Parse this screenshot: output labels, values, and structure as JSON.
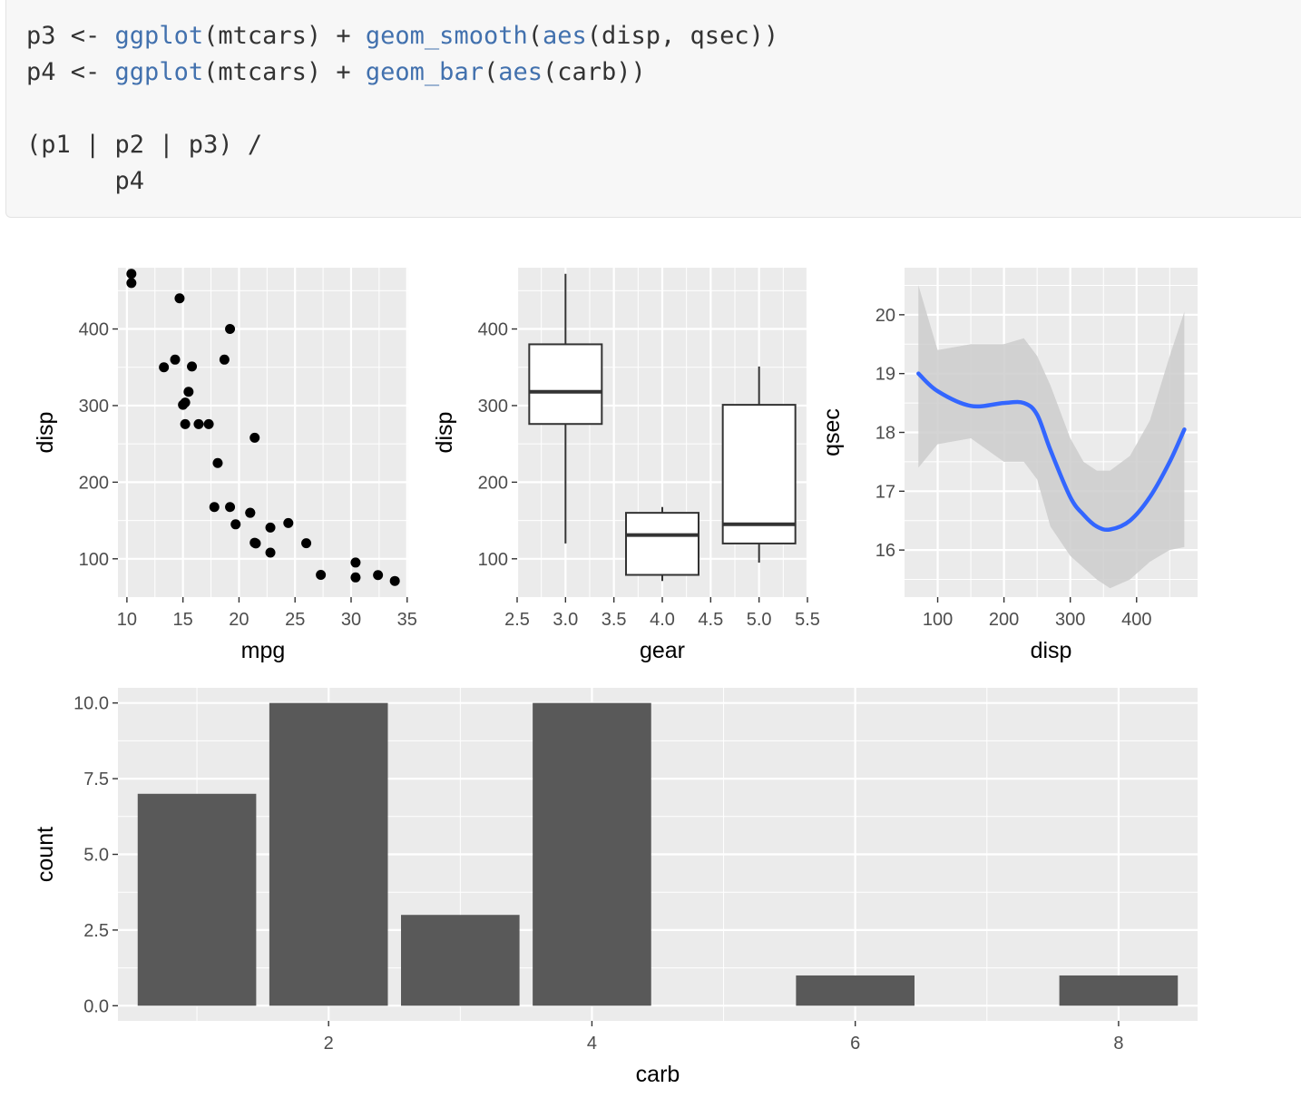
{
  "code": {
    "lines": [
      [
        {
          "t": "p3 <- ",
          "c": "plain"
        },
        {
          "t": "ggplot",
          "c": "fn"
        },
        {
          "t": "(mtcars) + ",
          "c": "plain"
        },
        {
          "t": "geom_smooth",
          "c": "fn"
        },
        {
          "t": "(",
          "c": "plain"
        },
        {
          "t": "aes",
          "c": "fn"
        },
        {
          "t": "(disp, qsec))",
          "c": "plain"
        }
      ],
      [
        {
          "t": "p4 <- ",
          "c": "plain"
        },
        {
          "t": "ggplot",
          "c": "fn"
        },
        {
          "t": "(mtcars) + ",
          "c": "plain"
        },
        {
          "t": "geom_bar",
          "c": "fn"
        },
        {
          "t": "(",
          "c": "plain"
        },
        {
          "t": "aes",
          "c": "fn"
        },
        {
          "t": "(carb))",
          "c": "plain"
        }
      ],
      [],
      [
        {
          "t": "(p1 | p2 | p3) /",
          "c": "plain"
        }
      ],
      [
        {
          "t": "      p4",
          "c": "plain"
        }
      ]
    ],
    "colors": {
      "plain": "#333333",
      "fn": "#4271ae",
      "background": "#f7f7f7"
    }
  },
  "chart_data": [
    {
      "id": "p1",
      "type": "scatter",
      "xlabel": "mpg",
      "ylabel": "disp",
      "xlim": [
        9.2,
        35.1
      ],
      "ylim": [
        50,
        480
      ],
      "xticks": [
        10,
        15,
        20,
        25,
        30,
        35
      ],
      "yticks": [
        100,
        200,
        300,
        400
      ],
      "points": [
        [
          21.0,
          160
        ],
        [
          21.0,
          160
        ],
        [
          22.8,
          108
        ],
        [
          21.4,
          258
        ],
        [
          18.7,
          360
        ],
        [
          18.1,
          225
        ],
        [
          14.3,
          360
        ],
        [
          24.4,
          146.7
        ],
        [
          22.8,
          140.8
        ],
        [
          19.2,
          167.6
        ],
        [
          17.8,
          167.6
        ],
        [
          16.4,
          275.8
        ],
        [
          17.3,
          275.8
        ],
        [
          15.2,
          275.8
        ],
        [
          10.4,
          472
        ],
        [
          10.4,
          460
        ],
        [
          14.7,
          440
        ],
        [
          32.4,
          78.7
        ],
        [
          30.4,
          75.7
        ],
        [
          33.9,
          71.1
        ],
        [
          21.5,
          120.1
        ],
        [
          15.5,
          318
        ],
        [
          15.2,
          304
        ],
        [
          13.3,
          350
        ],
        [
          19.2,
          400
        ],
        [
          27.3,
          79
        ],
        [
          26.0,
          120.3
        ],
        [
          30.4,
          95.1
        ],
        [
          15.8,
          351
        ],
        [
          19.7,
          145
        ],
        [
          15.0,
          301
        ],
        [
          21.4,
          121
        ]
      ]
    },
    {
      "id": "p2",
      "type": "box",
      "xlabel": "gear",
      "ylabel": "disp",
      "xlim": [
        2.5,
        5.5
      ],
      "ylim": [
        50,
        480
      ],
      "xticks": [
        2.5,
        3.0,
        3.5,
        4.0,
        4.5,
        5.0,
        5.5
      ],
      "xtick_labels": [
        "2.5",
        "3.0",
        "3.5",
        "4.0",
        "4.5",
        "5.0",
        "5.5"
      ],
      "yticks": [
        100,
        200,
        300,
        400
      ],
      "boxes": [
        {
          "x": 3,
          "min": 120,
          "q1": 276,
          "median": 318,
          "q3": 380,
          "max": 472
        },
        {
          "x": 4,
          "min": 71,
          "q1": 79,
          "median": 131,
          "q3": 160,
          "max": 167.6
        },
        {
          "x": 5,
          "min": 95,
          "q1": 120,
          "median": 145,
          "q3": 301,
          "max": 351
        }
      ]
    },
    {
      "id": "p3",
      "type": "line",
      "xlabel": "disp",
      "ylabel": "qsec",
      "xlim": [
        50,
        492
      ],
      "ylim": [
        15.2,
        20.8
      ],
      "xticks": [
        100,
        200,
        300,
        400
      ],
      "yticks": [
        16,
        17,
        18,
        19,
        20
      ],
      "line_color": "#3366ff",
      "band_color": "#cccccc",
      "x": [
        71,
        100,
        150,
        200,
        230,
        250,
        270,
        300,
        320,
        340,
        360,
        390,
        420,
        450,
        472
      ],
      "y": [
        19.0,
        18.7,
        18.45,
        18.5,
        18.5,
        18.3,
        17.7,
        16.9,
        16.6,
        16.4,
        16.35,
        16.5,
        16.9,
        17.5,
        18.05
      ],
      "ymin": [
        17.4,
        17.8,
        17.9,
        17.5,
        17.5,
        17.2,
        16.4,
        15.9,
        15.7,
        15.5,
        15.35,
        15.5,
        15.8,
        16.0,
        16.05
      ],
      "ymax": [
        20.5,
        19.4,
        19.5,
        19.5,
        19.6,
        19.3,
        18.8,
        17.9,
        17.5,
        17.35,
        17.35,
        17.6,
        18.2,
        19.3,
        20.05
      ]
    },
    {
      "id": "p4",
      "type": "bar",
      "xlabel": "carb",
      "ylabel": "count",
      "xlim": [
        0.4,
        8.6
      ],
      "ylim": [
        -0.5,
        10.5
      ],
      "xticks": [
        2,
        4,
        6,
        8
      ],
      "yticks": [
        0,
        2.5,
        5,
        7.5,
        10
      ],
      "ytick_labels": [
        "0.0",
        "2.5",
        "5.0",
        "7.5",
        "10.0"
      ],
      "categories": [
        1,
        2,
        3,
        4,
        6,
        8
      ],
      "values": [
        7,
        10,
        3,
        10,
        1,
        1
      ],
      "bar_color": "#595959"
    }
  ]
}
